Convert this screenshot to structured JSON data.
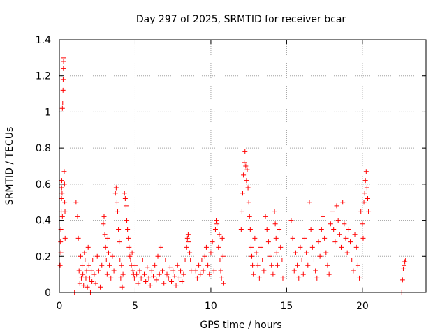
{
  "chart_data": {
    "type": "scatter",
    "title": "Day 297 of 2025, SRMTID for receiver bcar",
    "xlabel": "GPS time / hours",
    "ylabel": "SRMTID / TECUs",
    "xlim": [
      0,
      24.2
    ],
    "ylim": [
      0,
      1.4
    ],
    "xticks": [
      0,
      5,
      10,
      15,
      20
    ],
    "yticks": [
      0,
      0.2,
      0.4,
      0.6,
      0.8,
      1,
      1.2,
      1.4
    ],
    "ytick_labels": [
      "0",
      "0.2",
      "0.4",
      "0.6",
      "0.8",
      "1",
      "1.2",
      "1.4"
    ],
    "grid": true,
    "marker": "+",
    "color": "#ff0000",
    "series": [
      {
        "name": "SRMTID",
        "points": [
          [
            0.05,
            0.15
          ],
          [
            0.08,
            0.28
          ],
          [
            0.1,
            0.35
          ],
          [
            0.12,
            0.45
          ],
          [
            0.14,
            0.52
          ],
          [
            0.15,
            0.58
          ],
          [
            0.16,
            0.62
          ],
          [
            0.18,
            0.55
          ],
          [
            0.2,
            1.02
          ],
          [
            0.22,
            1.05
          ],
          [
            0.24,
            1.12
          ],
          [
            0.25,
            1.18
          ],
          [
            0.27,
            1.24
          ],
          [
            0.28,
            1.28
          ],
          [
            0.3,
            1.3
          ],
          [
            0.32,
            0.67
          ],
          [
            0.34,
            0.6
          ],
          [
            0.35,
            0.5
          ],
          [
            0.37,
            0.45
          ],
          [
            0.38,
            0.3
          ],
          [
            0.2,
            0.42
          ],
          [
            0.1,
            0.22
          ],
          [
            1.0,
            0.0
          ],
          [
            1.1,
            0.5
          ],
          [
            1.2,
            0.42
          ],
          [
            1.25,
            0.3
          ],
          [
            1.3,
            0.12
          ],
          [
            1.35,
            0.05
          ],
          [
            1.4,
            0.2
          ],
          [
            1.45,
            0.08
          ],
          [
            1.5,
            0.15
          ],
          [
            1.55,
            0.1
          ],
          [
            1.6,
            0.04
          ],
          [
            1.65,
            0.22
          ],
          [
            1.7,
            0.18
          ],
          [
            1.75,
            0.08
          ],
          [
            1.8,
            0.12
          ],
          [
            1.85,
            0.03
          ],
          [
            1.9,
            0.25
          ],
          [
            1.95,
            0.15
          ],
          [
            2.0,
            0.08
          ],
          [
            2.05,
            0.0
          ],
          [
            2.1,
            0.12
          ],
          [
            2.15,
            0.06
          ],
          [
            2.2,
            0.18
          ],
          [
            2.3,
            0.1
          ],
          [
            2.4,
            0.05
          ],
          [
            2.5,
            0.2
          ],
          [
            2.6,
            0.12
          ],
          [
            2.7,
            0.03
          ],
          [
            2.8,
            0.15
          ],
          [
            2.9,
            0.38
          ],
          [
            2.95,
            0.42
          ],
          [
            3.0,
            0.32
          ],
          [
            3.05,
            0.25
          ],
          [
            3.1,
            0.18
          ],
          [
            3.15,
            0.1
          ],
          [
            3.2,
            0.3
          ],
          [
            3.25,
            0.22
          ],
          [
            3.3,
            0.15
          ],
          [
            3.4,
            0.08
          ],
          [
            3.5,
            0.2
          ],
          [
            3.6,
            0.12
          ],
          [
            3.7,
            0.55
          ],
          [
            3.75,
            0.58
          ],
          [
            3.8,
            0.5
          ],
          [
            3.85,
            0.45
          ],
          [
            3.9,
            0.35
          ],
          [
            3.95,
            0.28
          ],
          [
            4.0,
            0.18
          ],
          [
            4.05,
            0.08
          ],
          [
            4.1,
            0.15
          ],
          [
            4.15,
            0.03
          ],
          [
            4.2,
            0.1
          ],
          [
            4.3,
            0.55
          ],
          [
            4.35,
            0.52
          ],
          [
            4.4,
            0.48
          ],
          [
            4.45,
            0.4
          ],
          [
            4.5,
            0.35
          ],
          [
            4.55,
            0.3
          ],
          [
            4.6,
            0.25
          ],
          [
            4.65,
            0.2
          ],
          [
            4.7,
            0.18
          ],
          [
            4.75,
            0.15
          ],
          [
            4.8,
            0.22
          ],
          [
            4.85,
            0.12
          ],
          [
            4.9,
            0.1
          ],
          [
            4.95,
            0.08
          ],
          [
            5.0,
            0.15
          ],
          [
            5.1,
            0.1
          ],
          [
            5.2,
            0.05
          ],
          [
            5.3,
            0.12
          ],
          [
            5.4,
            0.08
          ],
          [
            5.5,
            0.18
          ],
          [
            5.6,
            0.1
          ],
          [
            5.7,
            0.06
          ],
          [
            5.8,
            0.14
          ],
          [
            5.9,
            0.08
          ],
          [
            6.0,
            0.04
          ],
          [
            6.1,
            0.12
          ],
          [
            6.2,
            0.09
          ],
          [
            6.3,
            0.15
          ],
          [
            6.4,
            0.07
          ],
          [
            6.5,
            0.2
          ],
          [
            6.6,
            0.1
          ],
          [
            6.7,
            0.25
          ],
          [
            6.8,
            0.12
          ],
          [
            6.9,
            0.05
          ],
          [
            7.0,
            0.18
          ],
          [
            7.1,
            0.1
          ],
          [
            7.2,
            0.08
          ],
          [
            7.3,
            0.14
          ],
          [
            7.4,
            0.06
          ],
          [
            7.5,
            0.12
          ],
          [
            7.6,
            0.09
          ],
          [
            7.7,
            0.04
          ],
          [
            7.8,
            0.15
          ],
          [
            7.9,
            0.08
          ],
          [
            8.0,
            0.12
          ],
          [
            8.1,
            0.06
          ],
          [
            8.2,
            0.1
          ],
          [
            8.3,
            0.18
          ],
          [
            8.4,
            0.25
          ],
          [
            8.45,
            0.3
          ],
          [
            8.5,
            0.32
          ],
          [
            8.55,
            0.28
          ],
          [
            8.6,
            0.22
          ],
          [
            8.65,
            0.18
          ],
          [
            8.7,
            0.12
          ],
          [
            9.0,
            0.12
          ],
          [
            9.1,
            0.08
          ],
          [
            9.2,
            0.15
          ],
          [
            9.3,
            0.1
          ],
          [
            9.4,
            0.18
          ],
          [
            9.5,
            0.12
          ],
          [
            9.6,
            0.2
          ],
          [
            9.7,
            0.25
          ],
          [
            9.8,
            0.15
          ],
          [
            9.9,
            0.1
          ],
          [
            10.0,
            0.22
          ],
          [
            10.1,
            0.28
          ],
          [
            10.2,
            0.12
          ],
          [
            10.3,
            0.35
          ],
          [
            10.35,
            0.4
          ],
          [
            10.4,
            0.38
          ],
          [
            10.5,
            0.25
          ],
          [
            10.55,
            0.32
          ],
          [
            10.6,
            0.18
          ],
          [
            10.65,
            0.12
          ],
          [
            10.7,
            0.08
          ],
          [
            10.75,
            0.3
          ],
          [
            10.8,
            0.2
          ],
          [
            10.85,
            0.05
          ],
          [
            12.0,
            0.35
          ],
          [
            12.05,
            0.45
          ],
          [
            12.1,
            0.55
          ],
          [
            12.15,
            0.65
          ],
          [
            12.2,
            0.72
          ],
          [
            12.25,
            0.78
          ],
          [
            12.3,
            0.7
          ],
          [
            12.35,
            0.62
          ],
          [
            12.4,
            0.68
          ],
          [
            12.45,
            0.58
          ],
          [
            12.5,
            0.5
          ],
          [
            12.55,
            0.42
          ],
          [
            12.6,
            0.35
          ],
          [
            12.65,
            0.25
          ],
          [
            12.7,
            0.2
          ],
          [
            12.75,
            0.15
          ],
          [
            12.8,
            0.1
          ],
          [
            12.9,
            0.3
          ],
          [
            13.0,
            0.22
          ],
          [
            13.1,
            0.15
          ],
          [
            13.2,
            0.08
          ],
          [
            13.3,
            0.25
          ],
          [
            13.4,
            0.18
          ],
          [
            13.5,
            0.12
          ],
          [
            13.6,
            0.42
          ],
          [
            13.7,
            0.35
          ],
          [
            13.8,
            0.28
          ],
          [
            13.9,
            0.2
          ],
          [
            14.0,
            0.15
          ],
          [
            14.1,
            0.1
          ],
          [
            14.2,
            0.45
          ],
          [
            14.25,
            0.38
          ],
          [
            14.3,
            0.3
          ],
          [
            14.35,
            0.22
          ],
          [
            14.4,
            0.15
          ],
          [
            14.5,
            0.35
          ],
          [
            14.6,
            0.25
          ],
          [
            14.7,
            0.18
          ],
          [
            14.75,
            0.08
          ],
          [
            15.3,
            0.4
          ],
          [
            15.4,
            0.3
          ],
          [
            15.5,
            0.12
          ],
          [
            15.6,
            0.22
          ],
          [
            15.7,
            0.15
          ],
          [
            15.8,
            0.08
          ],
          [
            15.9,
            0.25
          ],
          [
            16.0,
            0.18
          ],
          [
            16.1,
            0.1
          ],
          [
            16.2,
            0.3
          ],
          [
            16.3,
            0.22
          ],
          [
            16.4,
            0.15
          ],
          [
            16.5,
            0.5
          ],
          [
            16.6,
            0.35
          ],
          [
            16.7,
            0.25
          ],
          [
            16.8,
            0.18
          ],
          [
            16.9,
            0.12
          ],
          [
            17.0,
            0.08
          ],
          [
            17.1,
            0.28
          ],
          [
            17.2,
            0.2
          ],
          [
            17.3,
            0.35
          ],
          [
            17.4,
            0.42
          ],
          [
            17.5,
            0.3
          ],
          [
            17.6,
            0.22
          ],
          [
            17.7,
            0.15
          ],
          [
            17.8,
            0.1
          ],
          [
            17.9,
            0.38
          ],
          [
            18.0,
            0.45
          ],
          [
            18.1,
            0.35
          ],
          [
            18.2,
            0.28
          ],
          [
            18.3,
            0.48
          ],
          [
            18.4,
            0.4
          ],
          [
            18.5,
            0.32
          ],
          [
            18.6,
            0.25
          ],
          [
            18.7,
            0.5
          ],
          [
            18.8,
            0.38
          ],
          [
            18.9,
            0.3
          ],
          [
            19.0,
            0.22
          ],
          [
            19.1,
            0.35
          ],
          [
            19.2,
            0.28
          ],
          [
            19.3,
            0.18
          ],
          [
            19.4,
            0.12
          ],
          [
            19.5,
            0.32
          ],
          [
            19.6,
            0.25
          ],
          [
            19.7,
            0.15
          ],
          [
            19.8,
            0.08
          ],
          [
            19.9,
            0.45
          ],
          [
            20.0,
            0.38
          ],
          [
            20.05,
            0.3
          ],
          [
            20.1,
            0.5
          ],
          [
            20.15,
            0.55
          ],
          [
            20.2,
            0.62
          ],
          [
            20.25,
            0.67
          ],
          [
            20.3,
            0.58
          ],
          [
            20.35,
            0.52
          ],
          [
            20.4,
            0.45
          ],
          [
            22.6,
            0.0
          ],
          [
            22.65,
            0.07
          ],
          [
            22.7,
            0.13
          ],
          [
            22.75,
            0.15
          ],
          [
            22.8,
            0.17
          ],
          [
            22.85,
            0.18
          ]
        ]
      }
    ]
  }
}
